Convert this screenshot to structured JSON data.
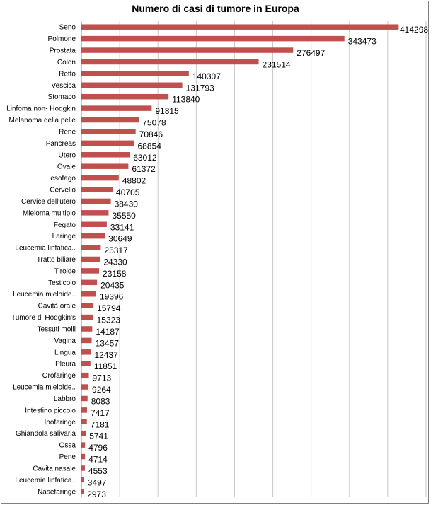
{
  "chart_data": {
    "type": "bar",
    "orientation": "horizontal",
    "title": "Numero di casi di tumore in Europa",
    "xlabel": "",
    "ylabel": "",
    "xlim": [
      0,
      450000
    ],
    "grid": "vertical",
    "legend": "none",
    "bar_color": "#c0504d",
    "categories": [
      "Seno",
      "Polmone",
      "Prostata",
      "Colon",
      "Retto",
      "Vescica",
      "Stomaco",
      "Linfoma non- Hodgkin",
      "Melanoma della pelle",
      "Rene",
      "Pancreas",
      "Utero",
      "Ovaie",
      "esofago",
      "Cervello",
      "Cervice dell'utero",
      "Mieloma multiplo",
      "Fegato",
      "Laringe",
      "Leucemia linfatica..",
      "Tratto biliare",
      "Tiroide",
      "Testicolo",
      "Leucemia mieloide..",
      "Cavità orale",
      "Tumore di Hodgkin's",
      "Tessuti molli",
      "Vagina",
      "Lingua",
      "Pleura",
      "Orofaringe",
      "Leucemia mieloide..",
      "Labbro",
      "Intestino piccolo",
      "Ipofaringe",
      "Ghiandola salivaria",
      "Ossa",
      "Pene",
      "Cavita nasale",
      "Leucemia linfatica..",
      "Nasefaringe"
    ],
    "values": [
      414298,
      343473,
      276497,
      231514,
      140307,
      131793,
      113840,
      91815,
      75078,
      70846,
      68854,
      63012,
      61372,
      48802,
      40705,
      38430,
      35550,
      33141,
      30649,
      25317,
      24330,
      23158,
      20435,
      19396,
      15794,
      15323,
      14187,
      13457,
      12437,
      11851,
      9713,
      9264,
      8083,
      7417,
      7181,
      5741,
      4796,
      4714,
      4553,
      3497,
      2973
    ]
  }
}
